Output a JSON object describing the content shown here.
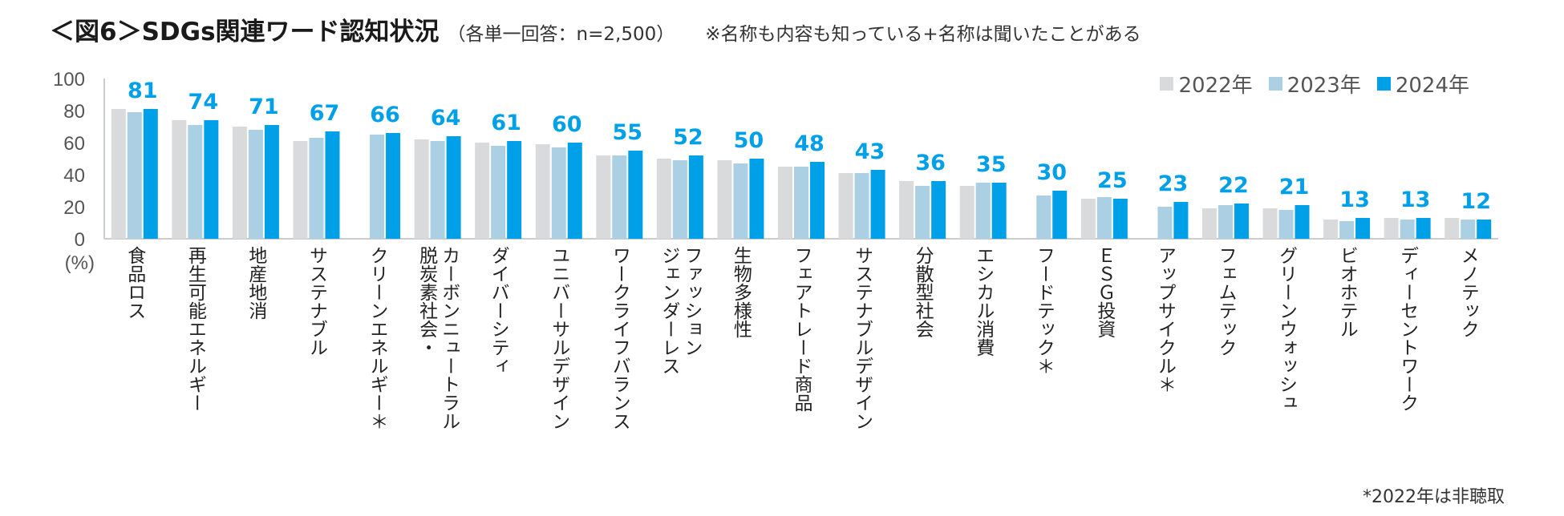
{
  "title": {
    "main": "＜図6＞SDGs関連ワード認知状況",
    "sub": "（各単一回答：n=2,500）",
    "note": "※名称も内容も知っている+名称は聞いたことがある"
  },
  "footnote": "*2022年は非聴取",
  "colors": {
    "2022": "#d9dadc",
    "2023": "#abcfe3",
    "2024": "#00a0e9",
    "label": "#00a0e9"
  },
  "chart_data": {
    "type": "bar",
    "title": "SDGs関連ワード認知状況",
    "ylabel": "(%)",
    "ylim": [
      0,
      100
    ],
    "yticks": [
      0,
      20,
      40,
      60,
      80,
      100
    ],
    "legend_position": "top-right",
    "categories": [
      "食品ロス",
      "再生可能エネルギー",
      "地産地消",
      "サステナブル",
      "クリーンエネルギー＊",
      "脱炭素社会・カーボンニュートラル",
      "ダイバーシティ",
      "ユニバーサルデザイン",
      "ワークライフバランス",
      "ジェンダーレスファッション",
      "生物多様性",
      "フェアトレード商品",
      "サステナブルデザイン",
      "分散型社会",
      "エシカル消費",
      "フードテック＊",
      "ＥＳＧ投資",
      "アップサイクル＊",
      "フェムテック",
      "グリーンウォッシュ",
      "ビオホテル",
      "ディーセントワーク",
      "メノテック"
    ],
    "category_lines": [
      [
        "食品ロス"
      ],
      [
        "再生可能エネルギー"
      ],
      [
        "地産地消"
      ],
      [
        "サステナブル"
      ],
      [
        "クリーンエネルギー＊"
      ],
      [
        "脱炭素社会・",
        "カーボンニュートラル"
      ],
      [
        "ダイバーシティ"
      ],
      [
        "ユニバーサルデザイン"
      ],
      [
        "ワークライフバランス"
      ],
      [
        "ジェンダーレス",
        "ファッション"
      ],
      [
        "生物多様性"
      ],
      [
        "フェアトレード商品"
      ],
      [
        "サステナブルデザイン"
      ],
      [
        "分散型社会"
      ],
      [
        "エシカル消費"
      ],
      [
        "フードテック＊"
      ],
      [
        "ＥＳＧ投資"
      ],
      [
        "アップサイクル＊"
      ],
      [
        "フェムテック"
      ],
      [
        "グリーンウォッシュ"
      ],
      [
        "ビオホテル"
      ],
      [
        "ディーセントワーク"
      ],
      [
        "メノテック"
      ]
    ],
    "series": [
      {
        "name": "2022年",
        "values": [
          81,
          74,
          70,
          61,
          null,
          62,
          60,
          59,
          52,
          50,
          49,
          45,
          41,
          36,
          33,
          null,
          25,
          null,
          19,
          19,
          12,
          13,
          13
        ]
      },
      {
        "name": "2023年",
        "values": [
          79,
          71,
          68,
          63,
          65,
          61,
          58,
          57,
          52,
          49,
          47,
          45,
          41,
          33,
          35,
          27,
          26,
          20,
          21,
          18,
          11,
          12,
          12
        ]
      },
      {
        "name": "2024年",
        "values": [
          81,
          74,
          71,
          67,
          66,
          64,
          61,
          60,
          55,
          52,
          50,
          48,
          43,
          36,
          35,
          30,
          25,
          23,
          22,
          21,
          13,
          13,
          12
        ]
      }
    ],
    "data_labels": [
      81,
      74,
      71,
      67,
      66,
      64,
      61,
      60,
      55,
      52,
      50,
      48,
      43,
      36,
      35,
      30,
      25,
      23,
      22,
      21,
      13,
      13,
      12
    ]
  }
}
